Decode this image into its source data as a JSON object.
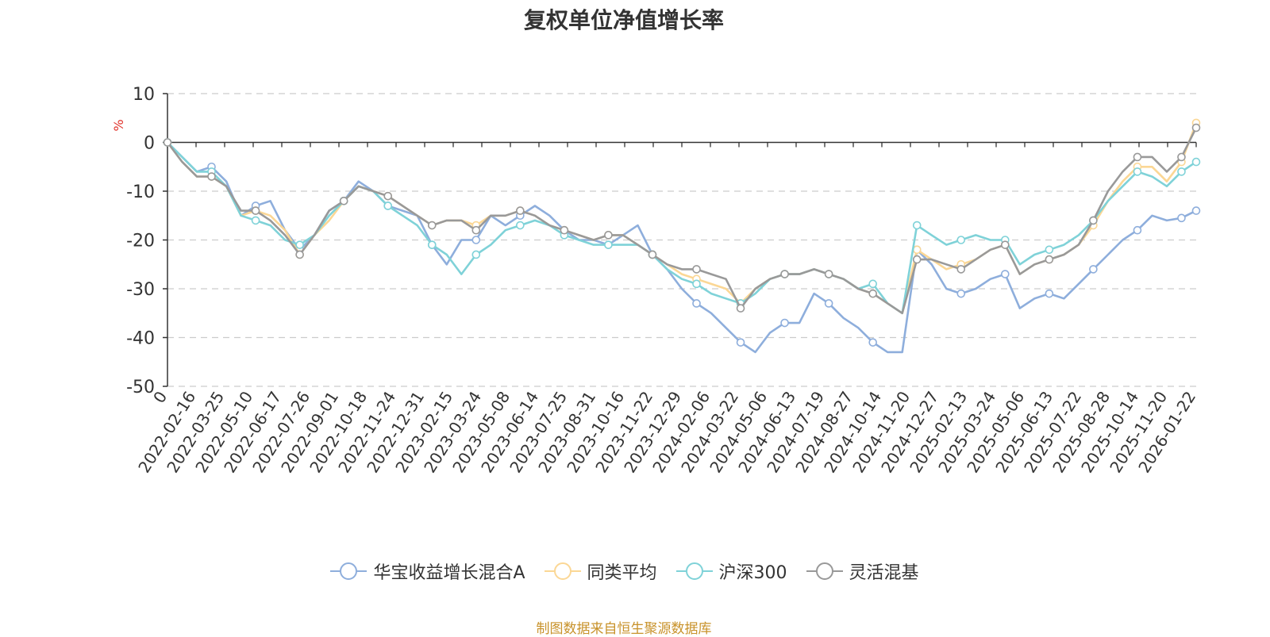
{
  "title": "复权单位净值增长率",
  "source_note": "制图数据来自恒生聚源数据库",
  "chart_data": {
    "type": "line",
    "title": "复权单位净值增长率",
    "ylabel": "%",
    "ylim": [
      -50,
      10
    ],
    "yticks": [
      10,
      0,
      -10,
      -20,
      -30,
      -40,
      -50
    ],
    "x_ticks": [
      "0",
      "2022-02-16",
      "2022-03-25",
      "2022-05-10",
      "2022-06-17",
      "2022-07-26",
      "2022-09-01",
      "2022-10-18",
      "2022-11-24",
      "2022-12-31",
      "2023-02-15",
      "2023-03-24",
      "2023-05-08",
      "2023-06-14",
      "2023-07-25",
      "2023-08-31",
      "2023-10-16",
      "2023-11-22",
      "2023-12-29",
      "2024-02-06",
      "2024-03-22",
      "2024-05-06",
      "2024-06-13",
      "2024-07-19",
      "2024-08-27",
      "2024-10-14",
      "2024-11-20",
      "2024-12-27",
      "2025-02-13",
      "2025-03-24",
      "2025-05-06",
      "2025-06-13",
      "2025-07-22",
      "2025-08-28",
      "2025-10-14",
      "2025-11-20",
      "2026-01-22"
    ],
    "grid": "horizontal dashed",
    "legend_position": "bottom",
    "colors": [
      "#8eaedc",
      "#fbd795",
      "#7fd2d8",
      "#999999"
    ],
    "series": [
      {
        "name": "华宝收益增长混合A",
        "values": [
          0,
          -3,
          -6,
          -5,
          -8,
          -15,
          -13,
          -12,
          -18,
          -22,
          -19,
          -14,
          -12,
          -8,
          -10,
          -13,
          -14,
          -15,
          -21,
          -25,
          -20,
          -20,
          -15,
          -17,
          -15,
          -13,
          -15,
          -18,
          -20,
          -20,
          -21,
          -19,
          -17,
          -23,
          -26,
          -30,
          -33,
          -35,
          -38,
          -41,
          -43,
          -39,
          -37,
          -37,
          -31,
          -33,
          -36,
          -38,
          -41,
          -43,
          -43,
          -22,
          -25,
          -30,
          -31,
          -30,
          -28,
          -27,
          -34,
          -32,
          -31,
          -32,
          -29,
          -26,
          -23,
          -20,
          -18,
          -15,
          -16,
          -15.5,
          -14
        ]
      },
      {
        "name": "同类平均",
        "values": [
          0,
          -4,
          -7,
          -7,
          -9,
          -15,
          -14,
          -15,
          -18,
          -23,
          -19,
          -16,
          -12,
          -9,
          -10,
          -11,
          -13,
          -15,
          -17,
          -16,
          -16,
          -17,
          -15,
          -15,
          -14,
          -15,
          -17,
          -18,
          -19,
          -20,
          -19,
          -19,
          -21,
          -23,
          -25,
          -27,
          -28,
          -29,
          -30,
          -33,
          -30,
          -28,
          -27,
          -27,
          -26,
          -27,
          -28,
          -30,
          -31,
          -33,
          -35,
          -22,
          -24,
          -26,
          -25,
          -24,
          -22,
          -21,
          -27,
          -25,
          -24,
          -23,
          -21,
          -17,
          -12,
          -8,
          -5,
          -5,
          -8,
          -4,
          4
        ]
      },
      {
        "name": "沪深300",
        "values": [
          0,
          -3,
          -6,
          -6,
          -9,
          -15,
          -16,
          -17,
          -20,
          -21,
          -19,
          -15,
          -12,
          -9,
          -10,
          -13,
          -15,
          -17,
          -21,
          -23,
          -27,
          -23,
          -21,
          -18,
          -17,
          -16,
          -17,
          -19,
          -20,
          -21,
          -21,
          -21,
          -21,
          -23,
          -26,
          -28,
          -29,
          -31,
          -32,
          -33,
          -31,
          -28,
          -27,
          -27,
          -26,
          -27,
          -28,
          -30,
          -29,
          -33,
          -35,
          -17,
          -19,
          -21,
          -20,
          -19,
          -20,
          -20,
          -25,
          -23,
          -22,
          -21,
          -19,
          -16,
          -12,
          -9,
          -6,
          -7,
          -9,
          -6,
          -4
        ]
      },
      {
        "name": "灵活混基",
        "values": [
          0,
          -4,
          -7,
          -7,
          -9,
          -14,
          -14,
          -16,
          -19,
          -23,
          -19,
          -14,
          -12,
          -9,
          -10,
          -11,
          -13,
          -15,
          -17,
          -16,
          -16,
          -18,
          -15,
          -15,
          -14,
          -15,
          -17,
          -18,
          -19,
          -20,
          -19,
          -19,
          -21,
          -23,
          -25,
          -26,
          -26,
          -27,
          -28,
          -34,
          -30,
          -28,
          -27,
          -27,
          -26,
          -27,
          -28,
          -30,
          -31,
          -33,
          -35,
          -24,
          -24,
          -25,
          -26,
          -24,
          -22,
          -21,
          -27,
          -25,
          -24,
          -23,
          -21,
          -16,
          -10,
          -6,
          -3,
          -3,
          -6,
          -3,
          3
        ]
      }
    ]
  }
}
